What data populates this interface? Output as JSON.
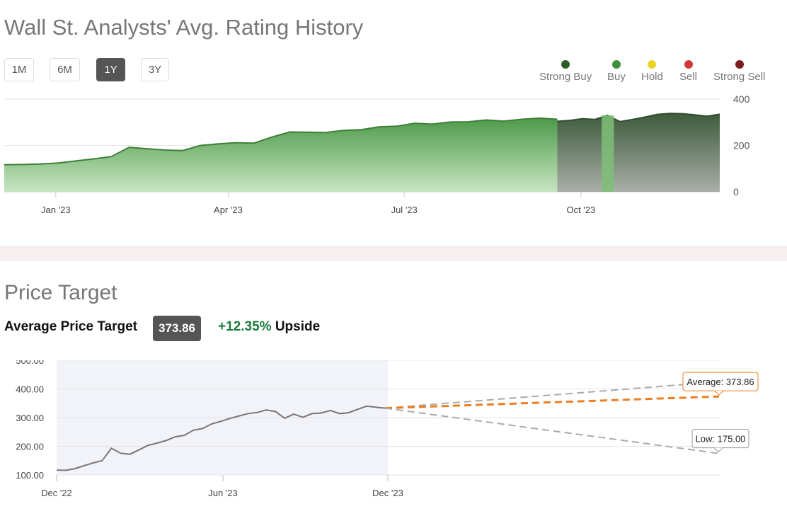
{
  "rating_section": {
    "title": "Wall St. Analysts' Avg. Rating History",
    "range_buttons": [
      {
        "label": "1M",
        "active": false
      },
      {
        "label": "6M",
        "active": false
      },
      {
        "label": "1Y",
        "active": true
      },
      {
        "label": "3Y",
        "active": false
      }
    ],
    "legend": [
      {
        "label": "Strong Buy",
        "color": "#2e5c27"
      },
      {
        "label": "Buy",
        "color": "#3f8f3a"
      },
      {
        "label": "Hold",
        "color": "#e8d62a"
      },
      {
        "label": "Sell",
        "color": "#d0383a"
      },
      {
        "label": "Strong Sell",
        "color": "#7d1c1c"
      }
    ]
  },
  "target_section": {
    "title": "Price Target",
    "avg_label": "Average Price Target",
    "avg_value": "373.86",
    "upside_pct": "+12.35%",
    "upside_word": "Upside",
    "average_callout": "Average: 373.86",
    "low_callout": "Low: 175.00"
  },
  "chart_data": [
    {
      "type": "area",
      "title": "Wall St. Analysts' Avg. Rating History",
      "x_tick_labels": [
        "Jan '23",
        "Apr '23",
        "Jul '23",
        "Oct '23"
      ],
      "y_ticks": [
        0,
        200,
        400
      ],
      "ylim": [
        0,
        400
      ],
      "grid": true,
      "legend_position": "top-right",
      "series": [
        {
          "rating": "Buy",
          "color": "#4e9a49",
          "values": [
            117,
            118,
            120,
            124,
            133,
            142,
            152,
            192,
            186,
            180,
            178,
            200,
            207,
            212,
            210,
            236,
            258,
            257,
            256,
            265,
            268,
            280,
            283,
            296,
            292,
            301,
            302,
            310,
            305,
            313,
            318,
            313
          ]
        },
        {
          "rating": "Strong Buy",
          "color": "#3e5b3b",
          "values": [
            304,
            308,
            315,
            312,
            330,
            303,
            312,
            322,
            334,
            338,
            337,
            332,
            326,
            335
          ]
        }
      ],
      "strong_buy_band_fraction_start": 0.773,
      "buy_gap_fraction": [
        0.835,
        0.852
      ]
    },
    {
      "type": "line",
      "title": "Price Target",
      "x_tick_labels": [
        "Dec '22",
        "Jun '23",
        "Dec '23"
      ],
      "y_ticks": [
        "100.00",
        "200.00",
        "300.00",
        "400.00",
        "500.00"
      ],
      "ylim": [
        100,
        500
      ],
      "grid": true,
      "history_values": [
        117,
        116,
        122,
        132,
        142,
        150,
        193,
        176,
        172,
        187,
        203,
        211,
        220,
        233,
        238,
        256,
        262,
        278,
        287,
        297,
        306,
        314,
        318,
        327,
        321,
        298,
        312,
        301,
        314,
        316,
        325,
        314,
        317,
        329,
        340,
        336,
        333
      ],
      "current_price": 333,
      "targets": [
        {
          "name": "High",
          "value": 425,
          "color": "#aaaaaa"
        },
        {
          "name": "Average",
          "value": 373.86,
          "color": "#ee7d1f"
        },
        {
          "name": "Low",
          "value": 175,
          "color": "#aaaaaa"
        }
      ]
    }
  ]
}
